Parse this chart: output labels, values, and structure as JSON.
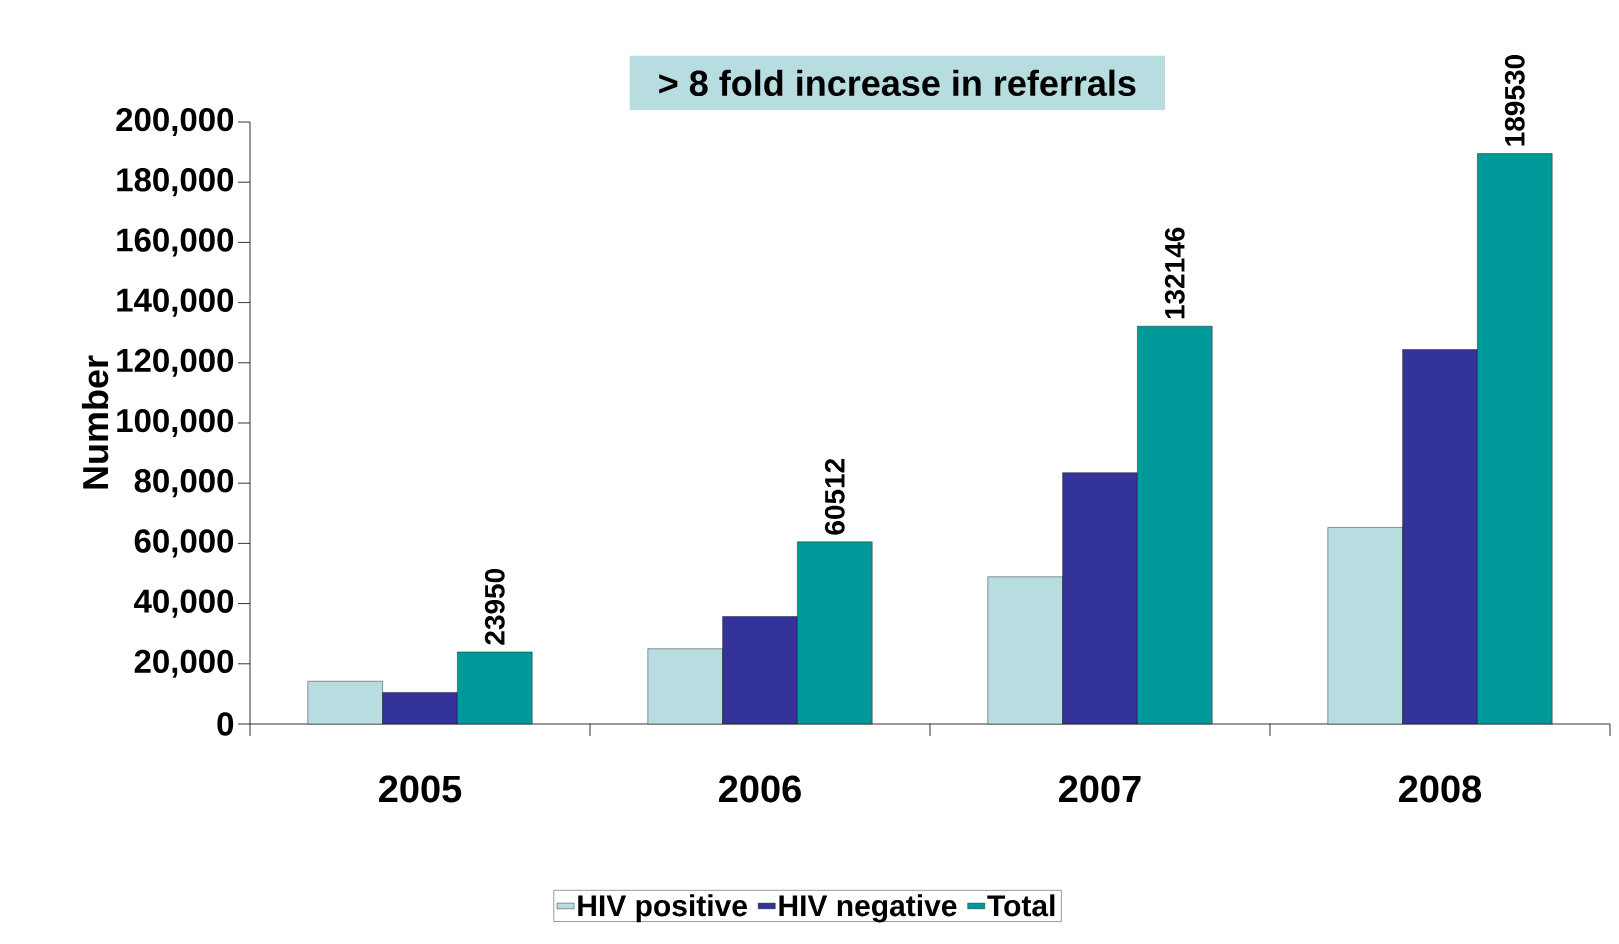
{
  "chart_data": {
    "type": "bar",
    "ylabel": "Number",
    "annotations": [
      "> 8 fold increase in referrals"
    ],
    "categories": [
      "2005",
      "2006",
      "2007",
      "2008"
    ],
    "series": [
      {
        "name": "HIV positive",
        "color": "#b8dde1",
        "values": [
          14200,
          25000,
          48900,
          65300
        ]
      },
      {
        "name": "HIV negative",
        "color": "#333399",
        "values": [
          10500,
          35700,
          83500,
          124400
        ]
      },
      {
        "name": "Total",
        "color": "#009999",
        "values": [
          23950,
          60512,
          132146,
          189530
        ],
        "value_labels": [
          "23950",
          "60512",
          "132146",
          "189530"
        ]
      }
    ],
    "ylim": [
      0,
      200000
    ],
    "yticks": [
      0,
      {
        "value": 20000,
        "label": "20,000"
      },
      {
        "value": 40000,
        "label": "40,000"
      },
      {
        "value": 60000,
        "label": "60,000"
      },
      {
        "value": 80000,
        "label": "80,000"
      },
      {
        "value": 100000,
        "label": "100,000"
      },
      {
        "value": 120000,
        "label": "120,000"
      },
      {
        "value": 140000,
        "label": "140,000"
      },
      {
        "value": 160000,
        "label": "160,000"
      },
      {
        "value": 180000,
        "label": "180,000"
      },
      {
        "value": 200000,
        "label": "200,000"
      }
    ],
    "grid": false,
    "legend": "bottom"
  }
}
